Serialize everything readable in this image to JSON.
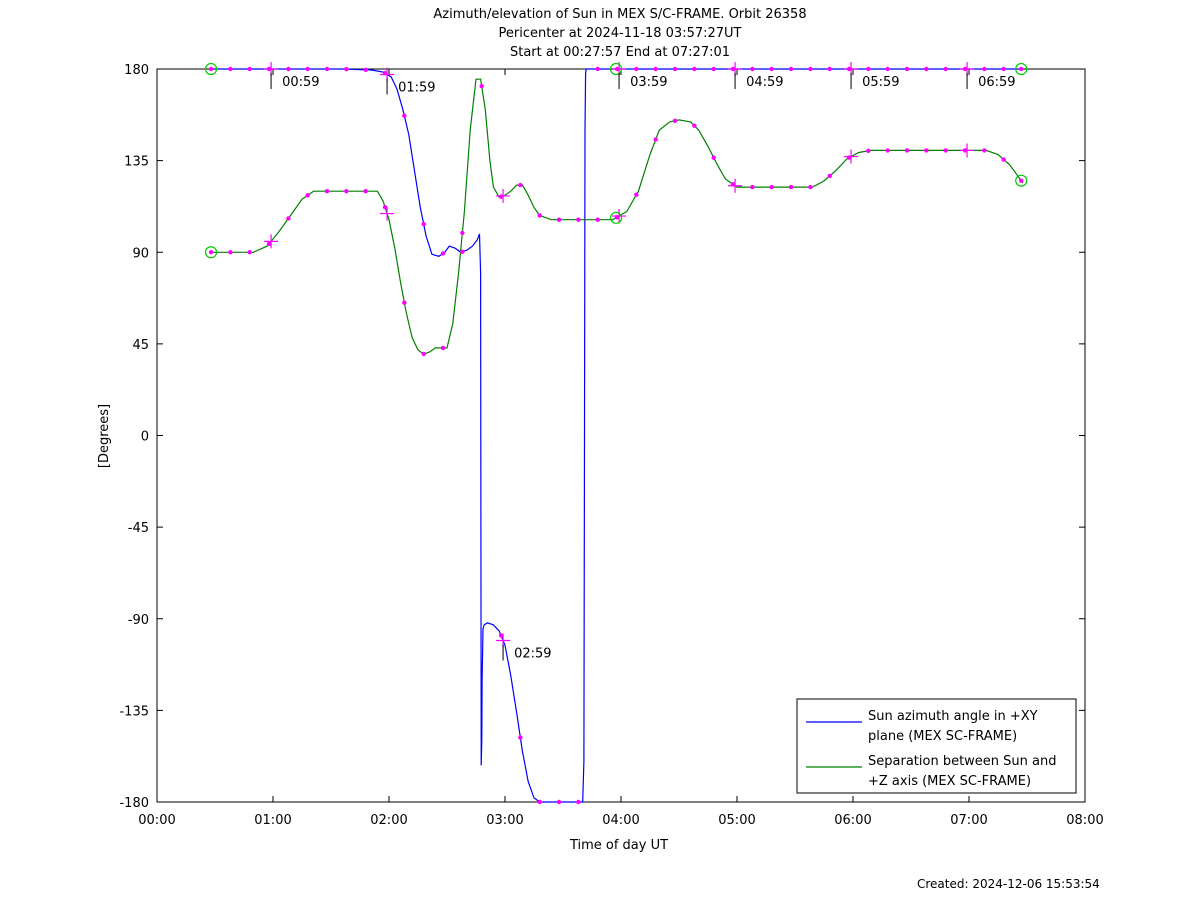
{
  "header": {
    "title_line1": "Azimuth/elevation of Sun in MEX S/C-FRAME.  Orbit 26358",
    "title_line2": "Pericenter at 2024-11-18 03:57:27UT",
    "title_line3": "Start at 00:27:57 End at 07:27:01"
  },
  "footer": {
    "created": "Created: 2024-12-06 15:53:54"
  },
  "chart_data": {
    "type": "line",
    "xlabel": "Time of day UT",
    "ylabel": "[Degrees]",
    "xlim_hours": [
      0,
      8
    ],
    "ylim": [
      -180,
      180
    ],
    "x_ticks": [
      "00:00",
      "01:00",
      "02:00",
      "03:00",
      "04:00",
      "05:00",
      "06:00",
      "07:00",
      "08:00"
    ],
    "y_ticks": [
      180,
      135,
      90,
      45,
      0,
      -45,
      -90,
      -135,
      -180
    ],
    "legend_position": "bottom-right",
    "hour_markers": [
      "00:59",
      "01:59",
      "02:59",
      "03:59",
      "04:59",
      "05:59",
      "06:59"
    ],
    "series": [
      {
        "name": "Sun azimuth angle in +XY plane (MEX SC-FRAME)",
        "color": "#0000ff",
        "x": [
          0.47,
          0.8,
          1.0,
          1.3,
          1.6,
          1.85,
          1.95,
          2.02,
          2.07,
          2.12,
          2.17,
          2.22,
          2.27,
          2.32,
          2.37,
          2.43,
          2.48,
          2.52,
          2.57,
          2.62,
          2.67,
          2.72,
          2.76,
          2.78,
          2.79,
          2.795,
          2.8,
          2.803,
          2.81,
          2.82,
          2.85,
          2.9,
          2.95,
          3.0,
          3.05,
          3.1,
          3.15,
          3.2,
          3.25,
          3.3,
          3.35,
          3.5,
          3.62,
          3.67,
          3.68,
          3.685,
          3.69,
          3.695,
          3.7,
          3.8,
          4.0,
          4.5,
          5.0,
          5.5,
          6.0,
          6.5,
          7.0,
          7.465
        ],
        "y": [
          180,
          180,
          180,
          180,
          180,
          179.5,
          178.5,
          176,
          170,
          160,
          148,
          130,
          112,
          98,
          89,
          88,
          90,
          93,
          92,
          90,
          91,
          93,
          96,
          99,
          80,
          -162,
          -150,
          -120,
          -95,
          -93,
          -92,
          -93,
          -96,
          -103,
          -118,
          -136,
          -155,
          -170,
          -178,
          -180,
          -180,
          -180,
          -180,
          -180,
          -160,
          0,
          150,
          178,
          180,
          180,
          180,
          180,
          180,
          180,
          180,
          180,
          180,
          180
        ]
      },
      {
        "name": "Separation between Sun and +Z axis (MEX SC-FRAME)",
        "color": "#008000",
        "x": [
          0.47,
          0.83,
          0.95,
          1.05,
          1.15,
          1.25,
          1.35,
          1.5,
          1.7,
          1.9,
          1.95,
          2.0,
          2.05,
          2.1,
          2.15,
          2.2,
          2.25,
          2.3,
          2.35,
          2.4,
          2.5,
          2.55,
          2.6,
          2.65,
          2.7,
          2.75,
          2.79,
          2.83,
          2.87,
          2.9,
          2.95,
          3.0,
          3.05,
          3.1,
          3.15,
          3.2,
          3.25,
          3.3,
          3.35,
          3.4,
          3.6,
          3.93,
          4.05,
          4.15,
          4.25,
          4.33,
          4.42,
          4.5,
          4.6,
          4.67,
          4.75,
          4.83,
          4.9,
          5.0,
          5.3,
          5.65,
          5.75,
          5.85,
          5.95,
          6.05,
          6.15,
          6.5,
          7.0,
          7.15,
          7.25,
          7.35,
          7.465
        ],
        "y": [
          90,
          90,
          93,
          100,
          108,
          116,
          120,
          120,
          120,
          120,
          115,
          106,
          92,
          75,
          60,
          48,
          42,
          40,
          41,
          43,
          43,
          55,
          80,
          110,
          150,
          175,
          175,
          160,
          135,
          122,
          117,
          118,
          120,
          123,
          123,
          118,
          112,
          108,
          107,
          106,
          106,
          106,
          110,
          120,
          138,
          150,
          154,
          155,
          154,
          150,
          142,
          133,
          126,
          122,
          122,
          122,
          125,
          130,
          136,
          139,
          140,
          140,
          140,
          140,
          138,
          133,
          124
        ]
      }
    ]
  }
}
